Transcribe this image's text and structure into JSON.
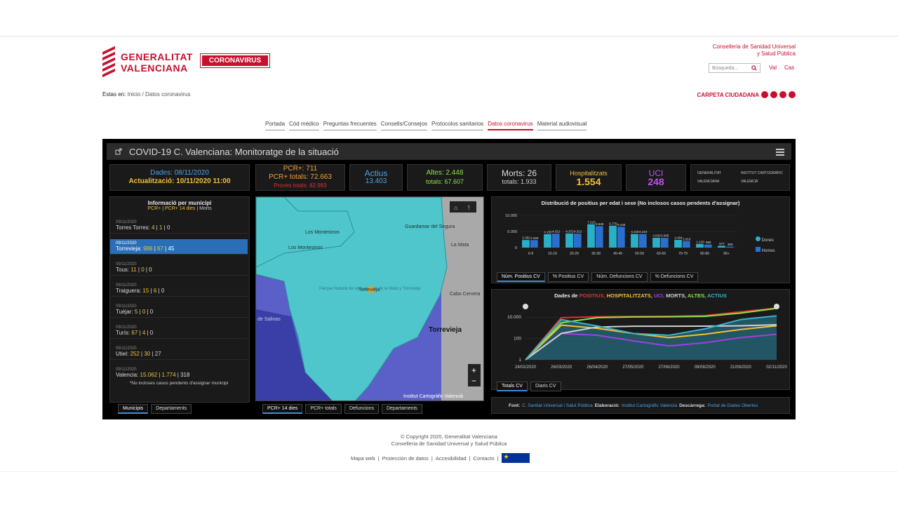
{
  "header": {
    "logo_line1": "GENERALITAT",
    "logo_line2": "VALENCIANA",
    "badge": "CORONAVIRUS",
    "conselleria_line1": "Conselleria de Sanidad Universal",
    "conselleria_line2": "y Salud Pública",
    "search_placeholder": "Búsqueda...",
    "lang_val": "Val",
    "lang_cas": "Cas",
    "carpeta": "CARPETA CIUDADANA"
  },
  "breadcrumb": {
    "prefix": "Estas en:",
    "home": "Inicio",
    "sep": "/",
    "current": "Datos coronavirus"
  },
  "menu": [
    "Portada",
    "Cód médico",
    "Preguntas frecuentes",
    "Consells/Consejos",
    "Protocolos sanitarios",
    "Datos coronavirus",
    "Material audiovisual"
  ],
  "dashboard": {
    "title": "COVID-19 C. Valenciana: Monitoratge de la situació",
    "dates_line1": "Dades: 08/11/2020",
    "dates_line2": "Actualització: 10/11/2020 11:00",
    "pcr_line1": "PCR+: 711",
    "pcr_line2": "PCR+ totals: 72.663",
    "pcr_line3": "Proves totals: 82.983",
    "actius_label": "Actius",
    "actius_value": "13.403",
    "altes_line1": "Altes: 2.448",
    "altes_line2": "totals: 67.607",
    "morts_line1": "Morts: 26",
    "morts_line2": "totals: 1.933",
    "hosp_label": "Hospitalitzats",
    "hosp_value": "1.554",
    "uci_label": "UCI",
    "uci_value": "248",
    "gv_logo": "GENERALITAT VALENCIANA",
    "icv_logo": "INSTITUT CARTOGRÀFIC VALENCIÀ",
    "mun_title": "Informació per municipi",
    "mun_sub_a": "PCR+",
    "mun_sub_b": "PCR+ 14 dies",
    "mun_sub_c": "Morts",
    "mun_sep": "|",
    "municipis": [
      {
        "date": "09/11/2020",
        "name": "Torres Torres:",
        "a": "4",
        "b": "1",
        "c": "0"
      },
      {
        "date": "09/11/2020",
        "name": "Torrevieja:",
        "a": "986",
        "b": "67",
        "c": "45"
      },
      {
        "date": "09/11/2020",
        "name": "Tous:",
        "a": "11",
        "b": "0",
        "c": "0"
      },
      {
        "date": "09/11/2020",
        "name": "Traiguera:",
        "a": "15",
        "b": "6",
        "c": "0"
      },
      {
        "date": "09/11/2020",
        "name": "Tuéjar:",
        "a": "5",
        "b": "0",
        "c": "0"
      },
      {
        "date": "09/11/2020",
        "name": "Turís:",
        "a": "67",
        "b": "4",
        "c": "0"
      },
      {
        "date": "09/11/2020",
        "name": "Utiel:",
        "a": "252",
        "b": "30",
        "c": "27"
      },
      {
        "date": "09/11/2020",
        "name": "Valencia:",
        "a": "15.062",
        "b": "1.774",
        "c": "318"
      }
    ],
    "mun_note": "*No incloses casos pendents d'assignar municipi",
    "mun_tabs": [
      "Municipis",
      "Departaments"
    ],
    "map_labels": {
      "montesinos1": "Los Montesinos",
      "montesinos2": "Los Montesinos",
      "guardamar": "Guardamar del Segura",
      "mata": "La Mata",
      "parque": "Parque Natural de las Lagunas de la Mata y Torrevieja",
      "torrevieja_pin": "Torrevieja",
      "torrevieja": "Torrevieja",
      "cabo": "Cabo Cervera",
      "salinas": "de Salinas",
      "credit": "Institut Cartogràfic Valencià",
      "zoom_in": "+",
      "zoom_out": "−"
    },
    "map_tabs": [
      "PCR+ 14 dies",
      "PCR+ totals",
      "Defuncions",
      "Departaments"
    ],
    "age_title": "Distribució de positius per edat i sexe (No inclosos casos pendents d'assignar)",
    "age_tabs": [
      "Núm. Positius CV",
      "% Positius CV",
      "Núm. Defuncions CV",
      "% Defuncions CV"
    ],
    "legend_dones": "Dones",
    "legend_homes": "Homes",
    "series_title_prefix": "Dades de",
    "series_names": [
      "POSITIUS",
      "HOSPITALITZATS",
      "UCI",
      "MORTS",
      "ALTES",
      "ACTIUS"
    ],
    "series_tabs": [
      "Totals CV",
      "Diaris CV"
    ],
    "source_prefix": "Font:",
    "source": "C. Sanitat Universal i Salut Pública",
    "elab_prefix": "Elaboració:",
    "elab": "Institut Cartogràfic Valencià",
    "desc_prefix": "Descàrrega:",
    "desc": "Portal de Dades Obertes"
  },
  "chart_data": [
    {
      "type": "bar",
      "title": "Distribució de positius per edat i sexe (No inclosos casos pendents d'assignar)",
      "categories": [
        "0-9",
        "10-19",
        "20-29",
        "30-39",
        "40-49",
        "50-59",
        "60-69",
        "70-79",
        "80-89",
        "90+"
      ],
      "series": [
        {
          "name": "Dones",
          "values": [
            2352,
            4155,
            4372,
            7223,
            6779,
            4218,
            3030,
            2404,
            1120,
            577
          ]
        },
        {
          "name": "Homes",
          "values": [
            2329,
            4321,
            4312,
            6635,
            6445,
            4210,
            3005,
            2010,
            955,
            300
          ]
        }
      ],
      "ylim": [
        0,
        10000
      ]
    },
    {
      "type": "line",
      "title": "Dades de POSITIUS, HOSPITALITZATS, UCI, MORTS, ALTES, ACTIUS",
      "x": [
        "24/02/2020",
        "26/03/2020",
        "26/04/2020",
        "27/05/2020",
        "27/06/2020",
        "09/08/2020",
        "21/09/2020",
        "02/11/2020"
      ],
      "yscale": "log",
      "ticks": [
        "10.000",
        "100",
        "1"
      ],
      "series": [
        {
          "name": "POSITIUS",
          "color": "#e03030",
          "values": [
            1,
            9000,
            11000,
            11600,
            12100,
            14000,
            32000,
            72663
          ]
        },
        {
          "name": "HOSPITALITZATS",
          "color": "#f2c037",
          "values": [
            1,
            1800,
            900,
            300,
            120,
            250,
            700,
            1554
          ]
        },
        {
          "name": "UCI",
          "color": "#a040e0",
          "values": [
            1,
            300,
            200,
            60,
            20,
            40,
            120,
            248
          ]
        },
        {
          "name": "MORTS",
          "color": "#d0d0d0",
          "values": [
            1,
            300,
            1200,
            1400,
            1420,
            1450,
            1550,
            1933
          ]
        },
        {
          "name": "ALTES",
          "color": "#8ee04a",
          "values": [
            1,
            3000,
            9000,
            10500,
            11000,
            12000,
            24000,
            67607
          ]
        },
        {
          "name": "ACTIUS",
          "color": "#3ab0c8",
          "values": [
            1,
            6000,
            1500,
            300,
            200,
            800,
            6000,
            13403
          ]
        }
      ]
    }
  ],
  "footer": {
    "line1": "© Copyright 2020, Generalitat Valenciana",
    "line2": "Conselleria de Sanidad Universal y Salud Pública",
    "links": [
      "Mapa web",
      "Protección de datos",
      "Accesibilidad",
      "Contacto"
    ]
  }
}
